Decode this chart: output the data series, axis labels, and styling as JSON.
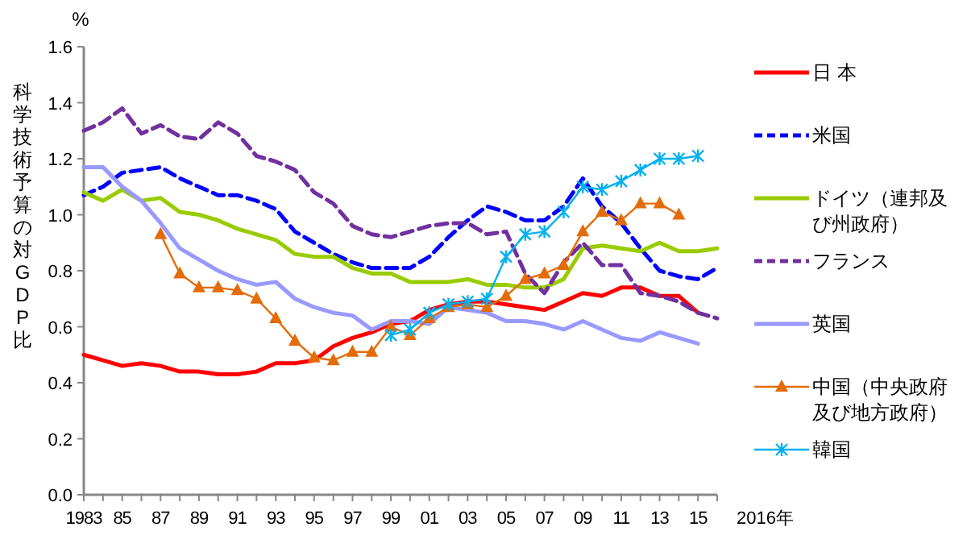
{
  "chart_data": {
    "type": "line",
    "ylabel": "科学技術予算の対GDP比",
    "xlabel": "2016年",
    "annotations": [
      "%"
    ],
    "x": [
      1983,
      1984,
      1985,
      1986,
      1987,
      1988,
      1989,
      1990,
      1991,
      1992,
      1993,
      1994,
      1995,
      1996,
      1997,
      1998,
      1999,
      2000,
      2001,
      2002,
      2003,
      2004,
      2005,
      2006,
      2007,
      2008,
      2009,
      2010,
      2011,
      2012,
      2013,
      2014,
      2015,
      2016
    ],
    "xlim": [
      1983,
      2016
    ],
    "xticks": [
      {
        "value": 1983,
        "label": "1983"
      },
      {
        "value": 1984,
        "label": null
      },
      {
        "value": 1985,
        "label": "85"
      },
      {
        "value": 1986,
        "label": null
      },
      {
        "value": 1987,
        "label": "87"
      },
      {
        "value": 1988,
        "label": null
      },
      {
        "value": 1989,
        "label": "89"
      },
      {
        "value": 1990,
        "label": null
      },
      {
        "value": 1991,
        "label": "91"
      },
      {
        "value": 1992,
        "label": null
      },
      {
        "value": 1993,
        "label": "93"
      },
      {
        "value": 1994,
        "label": null
      },
      {
        "value": 1995,
        "label": "95"
      },
      {
        "value": 1996,
        "label": null
      },
      {
        "value": 1997,
        "label": "97"
      },
      {
        "value": 1998,
        "label": null
      },
      {
        "value": 1999,
        "label": "99"
      },
      {
        "value": 2000,
        "label": null
      },
      {
        "value": 2001,
        "label": "01"
      },
      {
        "value": 2002,
        "label": null
      },
      {
        "value": 2003,
        "label": "03"
      },
      {
        "value": 2004,
        "label": null
      },
      {
        "value": 2005,
        "label": "05"
      },
      {
        "value": 2006,
        "label": null
      },
      {
        "value": 2007,
        "label": "07"
      },
      {
        "value": 2008,
        "label": null
      },
      {
        "value": 2009,
        "label": "09"
      },
      {
        "value": 2010,
        "label": null
      },
      {
        "value": 2011,
        "label": "11"
      },
      {
        "value": 2012,
        "label": null
      },
      {
        "value": 2013,
        "label": "13"
      },
      {
        "value": 2014,
        "label": null
      },
      {
        "value": 2015,
        "label": "15"
      },
      {
        "value": 2016,
        "label": null
      }
    ],
    "ylim": [
      0,
      1.6
    ],
    "yticks": [
      {
        "value": 0,
        "label": "0.0"
      },
      {
        "value": 0.2,
        "label": "0.2"
      },
      {
        "value": 0.4,
        "label": "0.4"
      },
      {
        "value": 0.6,
        "label": "0.6"
      },
      {
        "value": 0.8,
        "label": "0.8"
      },
      {
        "value": 1.0,
        "label": "1.0"
      },
      {
        "value": 1.2,
        "label": "1.2"
      },
      {
        "value": 1.4,
        "label": "1.4"
      },
      {
        "value": 1.6,
        "label": "1.6"
      }
    ],
    "grid": false,
    "legend": "right",
    "series": [
      {
        "name": "日 本",
        "color": "#ff0000",
        "line_style": "solid",
        "marker": "none",
        "values": [
          0.5,
          0.48,
          0.46,
          0.47,
          0.46,
          0.44,
          0.44,
          0.43,
          0.43,
          0.44,
          0.47,
          0.47,
          0.48,
          0.53,
          0.56,
          0.58,
          0.61,
          0.62,
          0.66,
          0.68,
          0.69,
          0.69,
          0.68,
          0.67,
          0.66,
          0.69,
          0.72,
          0.71,
          0.74,
          0.74,
          0.71,
          0.71,
          0.65,
          null
        ]
      },
      {
        "name": "米国",
        "color": "#0000ff",
        "line_style": "dashed",
        "marker": "none",
        "values": [
          1.07,
          1.1,
          1.15,
          1.16,
          1.17,
          1.13,
          1.1,
          1.07,
          1.07,
          1.05,
          1.02,
          0.94,
          0.9,
          0.86,
          0.83,
          0.81,
          0.81,
          0.81,
          0.85,
          0.92,
          0.98,
          1.03,
          1.01,
          0.98,
          0.98,
          1.03,
          1.13,
          1.03,
          0.97,
          0.88,
          0.8,
          0.78,
          0.77,
          0.81
        ]
      },
      {
        "name": "ドイツ（連邦及び州政府）",
        "color": "#99cc00",
        "line_style": "solid",
        "marker": "none",
        "values": [
          1.08,
          1.05,
          1.09,
          1.05,
          1.06,
          1.01,
          1.0,
          0.98,
          0.95,
          0.93,
          0.91,
          0.86,
          0.85,
          0.85,
          0.81,
          0.79,
          0.79,
          0.76,
          0.76,
          0.76,
          0.77,
          0.75,
          0.75,
          0.74,
          0.74,
          0.77,
          0.88,
          0.89,
          0.88,
          0.87,
          0.9,
          0.87,
          0.87,
          0.88
        ]
      },
      {
        "name": "フランス",
        "color": "#7030a0",
        "line_style": "dashed",
        "marker": "none",
        "values": [
          1.3,
          1.33,
          1.38,
          1.29,
          1.32,
          1.28,
          1.27,
          1.33,
          1.29,
          1.21,
          1.19,
          1.16,
          1.08,
          1.04,
          0.96,
          0.93,
          0.92,
          0.94,
          0.96,
          0.97,
          0.97,
          0.93,
          0.94,
          0.79,
          0.72,
          0.83,
          0.9,
          0.82,
          0.82,
          0.72,
          0.71,
          0.69,
          0.65,
          0.63
        ]
      },
      {
        "name": "英国",
        "color": "#9999ff",
        "line_style": "solid",
        "marker": "none",
        "values": [
          1.17,
          1.17,
          1.1,
          1.05,
          0.97,
          0.88,
          0.84,
          0.8,
          0.77,
          0.75,
          0.76,
          0.7,
          0.67,
          0.65,
          0.64,
          0.59,
          0.62,
          0.62,
          0.61,
          0.67,
          0.66,
          0.65,
          0.62,
          0.62,
          0.61,
          0.59,
          0.62,
          0.59,
          0.56,
          0.55,
          0.58,
          0.56,
          0.54,
          null
        ]
      },
      {
        "name": "中国（中央政府及び地方政府）",
        "color": "#e36c09",
        "line_style": "solid",
        "marker": "triangle",
        "values": [
          null,
          null,
          null,
          null,
          0.93,
          0.79,
          0.74,
          0.74,
          0.73,
          0.7,
          0.63,
          0.55,
          0.49,
          0.48,
          0.51,
          0.51,
          0.6,
          0.57,
          0.63,
          0.67,
          0.68,
          0.67,
          0.71,
          0.77,
          0.79,
          0.82,
          0.94,
          1.01,
          0.98,
          1.04,
          1.04,
          1.0,
          null,
          null
        ]
      },
      {
        "name": "韓国",
        "color": "#00b0f0",
        "line_style": "solid",
        "marker": "cross",
        "values": [
          null,
          null,
          null,
          null,
          null,
          null,
          null,
          null,
          null,
          null,
          null,
          null,
          null,
          null,
          null,
          null,
          0.57,
          0.59,
          0.65,
          0.68,
          0.69,
          0.7,
          0.85,
          0.93,
          0.94,
          1.01,
          1.1,
          1.09,
          1.12,
          1.16,
          1.2,
          1.2,
          1.21,
          null
        ]
      }
    ]
  }
}
